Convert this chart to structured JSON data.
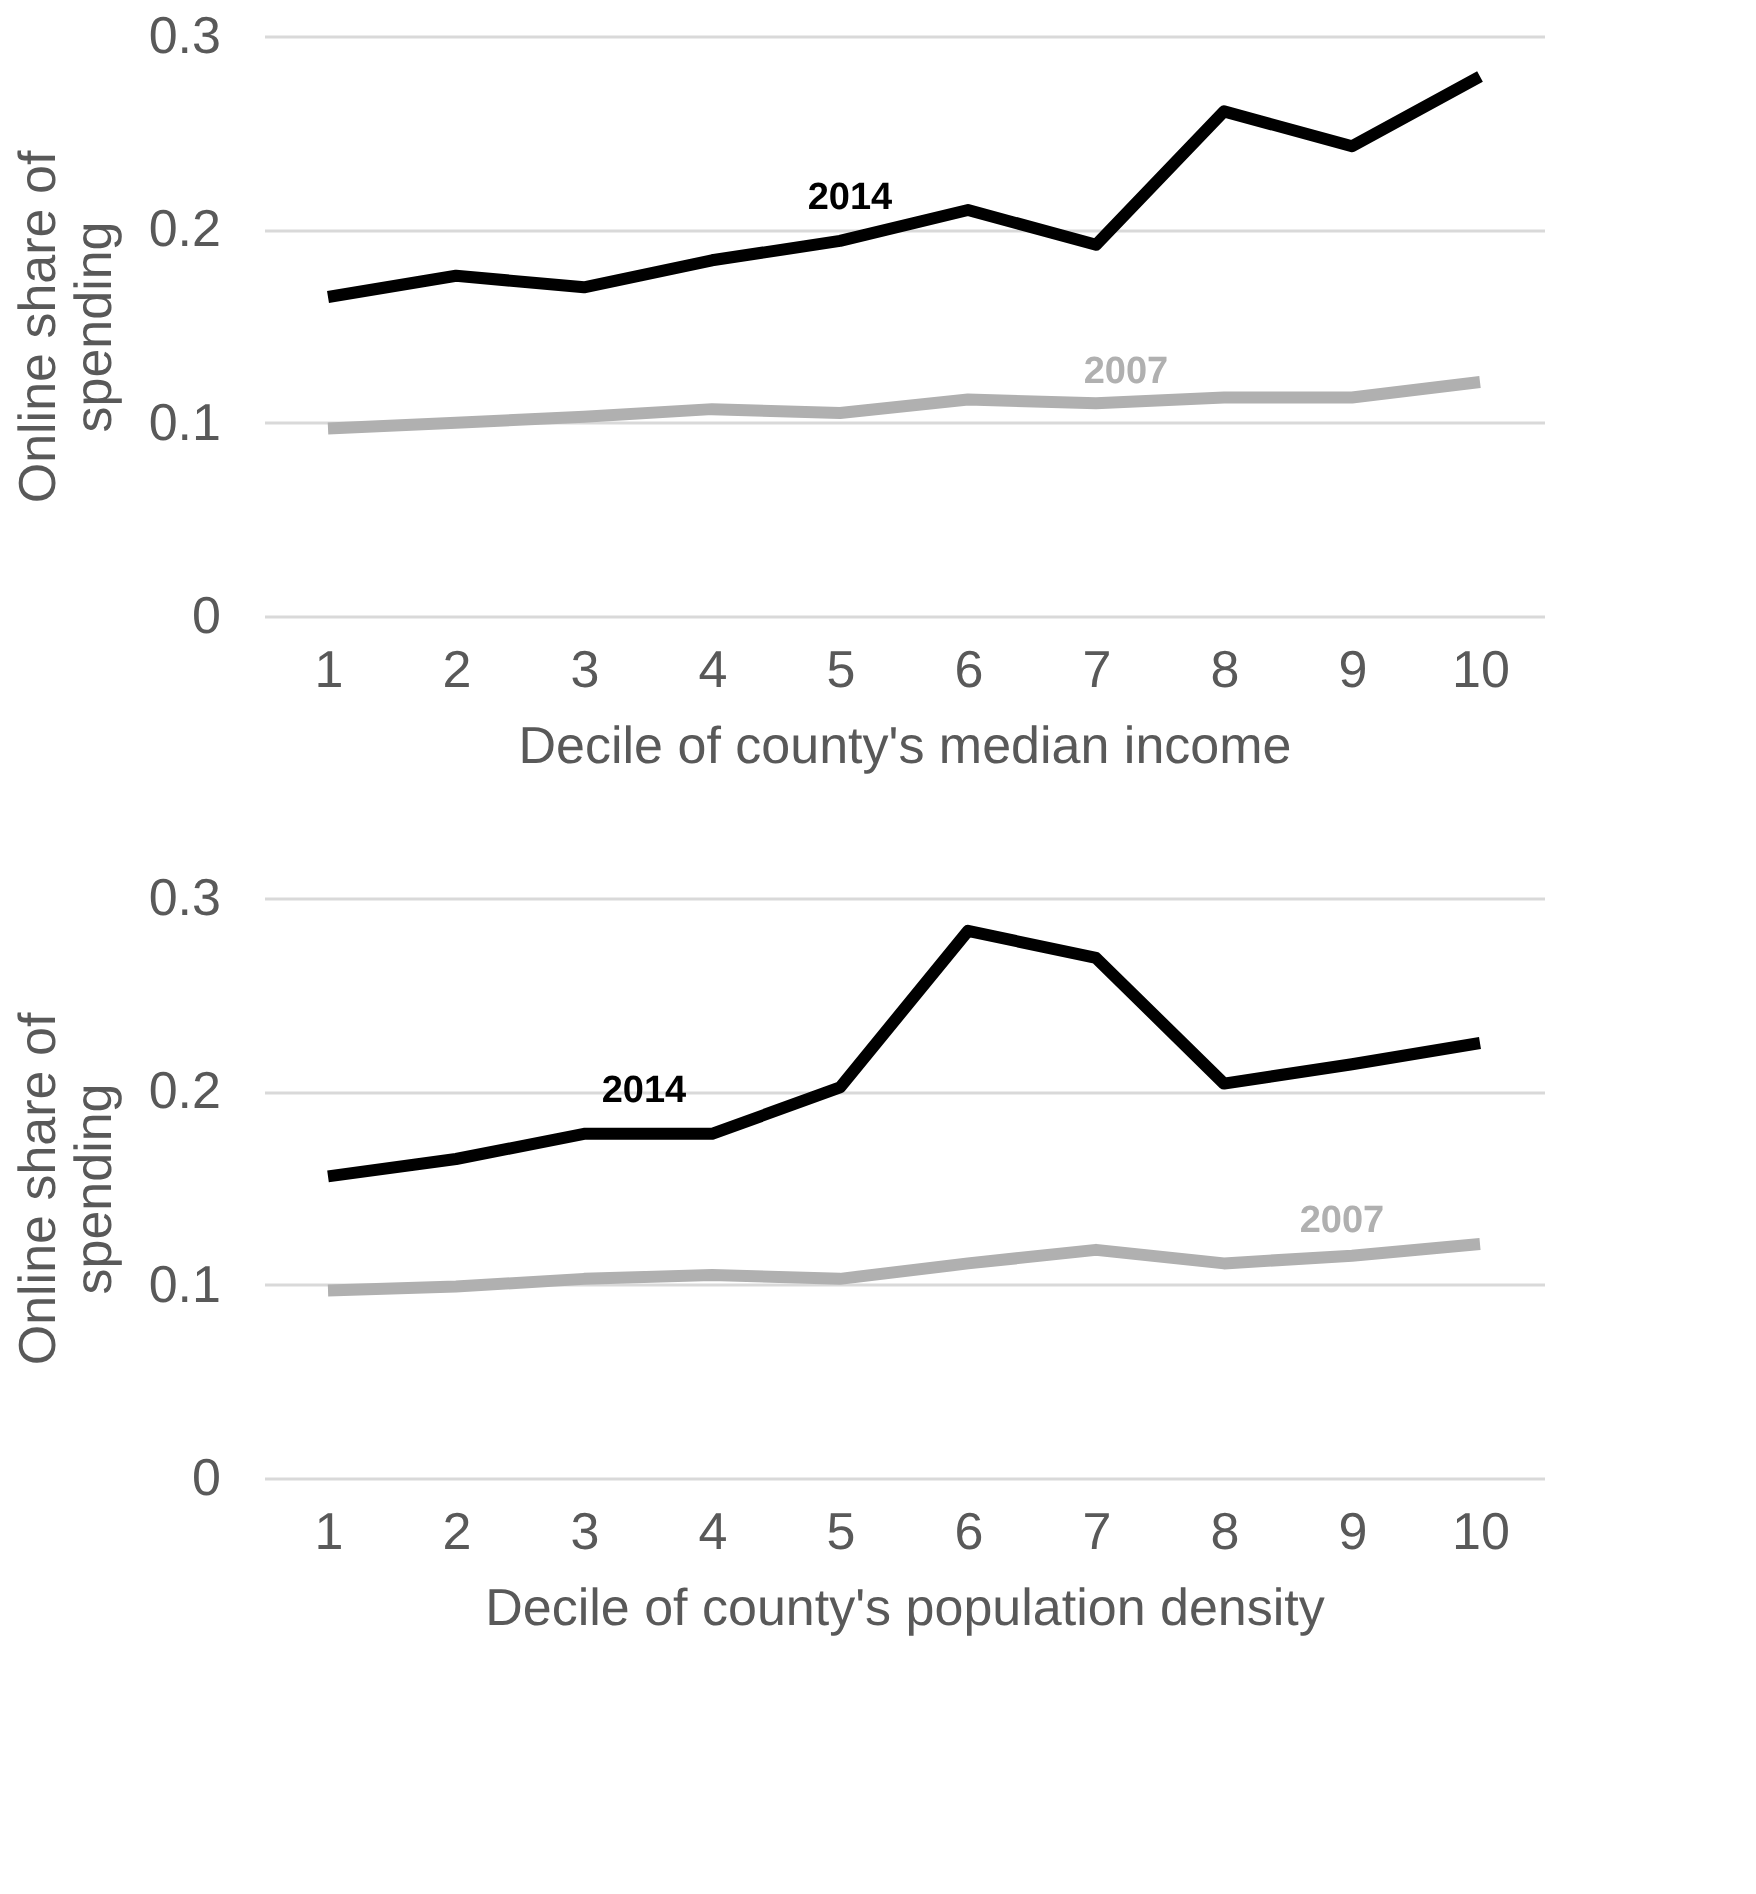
{
  "chart_data": [
    {
      "type": "line",
      "xlabel": "Decile of county's median income",
      "ylabel": "Online share of spending",
      "categories": [
        "1",
        "2",
        "3",
        "4",
        "5",
        "6",
        "7",
        "8",
        "9",
        "10"
      ],
      "series": [
        {
          "name": "2014",
          "color": "#000000",
          "values": [
            0.165,
            0.176,
            0.17,
            0.184,
            0.194,
            0.21,
            0.192,
            0.261,
            0.243,
            0.279
          ]
        },
        {
          "name": "2007",
          "color": "#b0b0b0",
          "values": [
            0.097,
            0.1,
            0.103,
            0.107,
            0.105,
            0.112,
            0.11,
            0.113,
            0.113,
            0.121
          ]
        }
      ],
      "ylim": [
        0,
        0.3
      ],
      "yticks": [
        0,
        0.1,
        0.2,
        0.3
      ],
      "grid": "y",
      "line_style": "solid"
    },
    {
      "type": "line",
      "xlabel": "Decile of county's population density",
      "ylabel": "Online share of spending",
      "categories": [
        "1",
        "2",
        "3",
        "4",
        "5",
        "6",
        "7",
        "8",
        "9",
        "10"
      ],
      "series": [
        {
          "name": "2014",
          "color": "#000000",
          "values": [
            0.156,
            0.165,
            0.178,
            0.178,
            0.202,
            0.283,
            0.269,
            0.204,
            0.214,
            0.225
          ]
        },
        {
          "name": "2007",
          "color": "#b0b0b0",
          "values": [
            0.097,
            0.099,
            0.103,
            0.105,
            0.103,
            0.111,
            0.118,
            0.111,
            0.115,
            0.121
          ]
        }
      ],
      "ylim": [
        0,
        0.3
      ],
      "yticks": [
        0,
        0.1,
        0.2,
        0.3
      ],
      "grid": "y",
      "line_style": "solid"
    }
  ]
}
